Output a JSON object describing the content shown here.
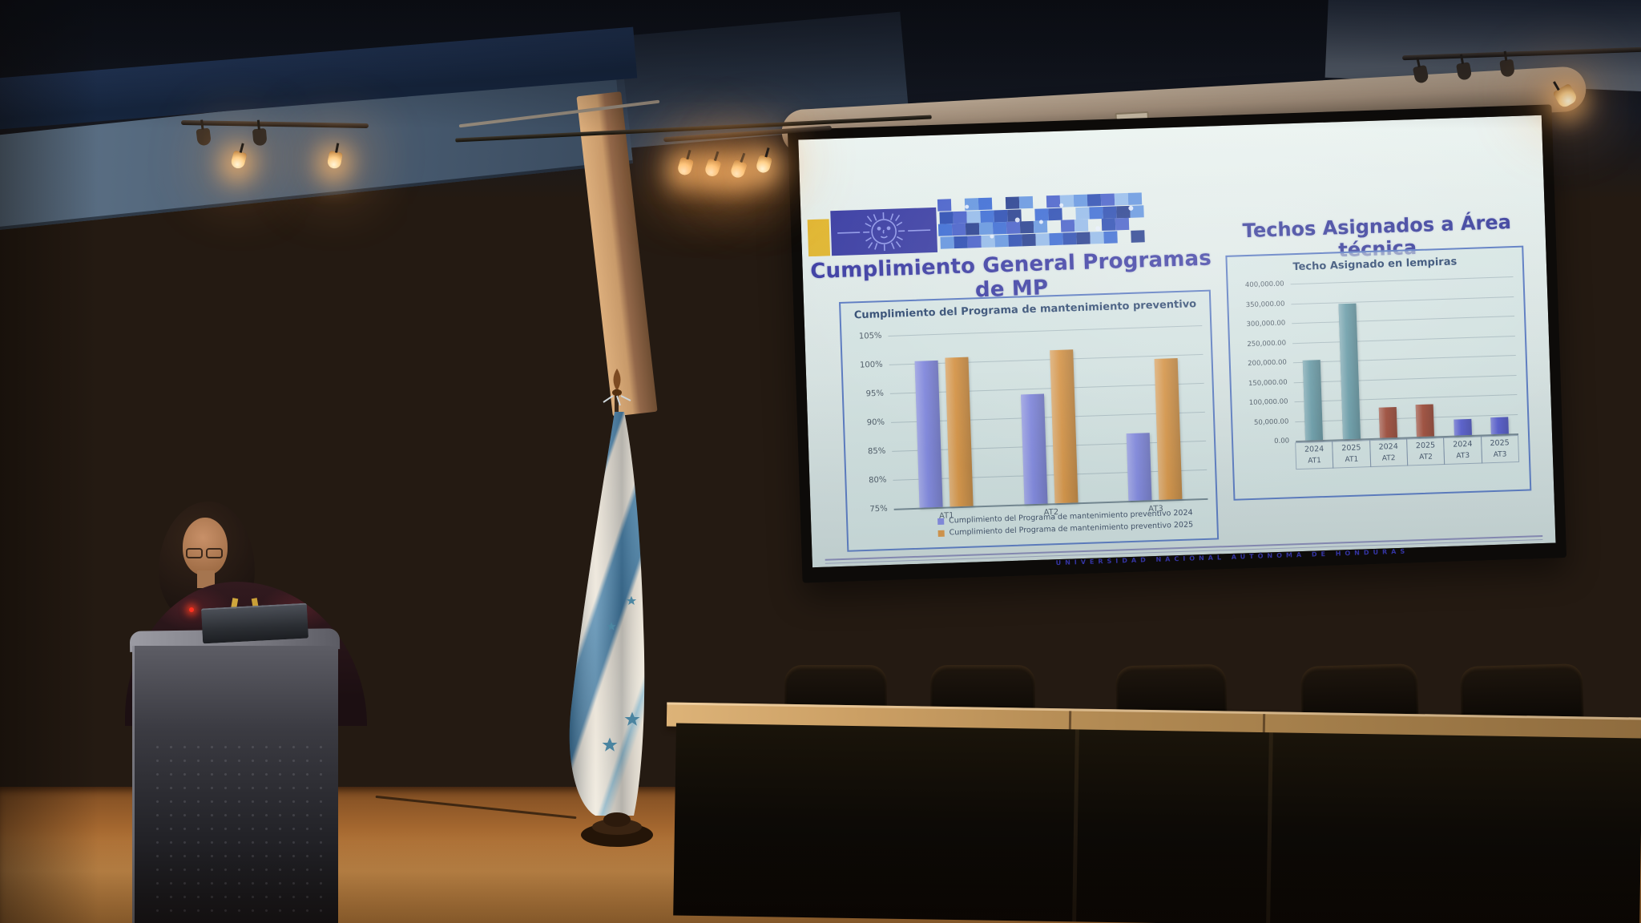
{
  "slide": {
    "title_left": "Cumplimiento General Programas de MP",
    "title_right": "Techos Asignados a Área técnica",
    "footer": "UNIVERSIDAD NACIONAL AUTÓNOMA DE HONDURAS"
  },
  "icons": {
    "logo_sun": "sun-face-icon",
    "logo_mosaic": "unah-mosaic-faces",
    "flag": "honduras-flag"
  },
  "colors": {
    "title_blue": "#2c2c9e",
    "chart_border": "#4d6fc0",
    "logo_yellow": "#e3b31f",
    "logo_navy": "#2d2f9e",
    "bar_blue_2024": "#7b80e3",
    "bar_orange_2025": "#dd8e33",
    "bar_teal_at1": "#5f97a4",
    "bar_red_at2": "#9d3b25",
    "bar_indigo_at3": "#4c50cf"
  },
  "chart_data": [
    {
      "type": "bar",
      "title": "Cumplimiento del Programa de mantenimiento preventivo",
      "categories": [
        "AT1",
        "AT2",
        "AT3"
      ],
      "series": [
        {
          "name": "Cumplimiento del Programa de mantenimiento preventivo  2024",
          "color": "#7b80e3",
          "values": [
            100.4,
            94.0,
            86.6
          ]
        },
        {
          "name": "Cumplimiento del Programa de mantenimiento preventivo  2025",
          "color": "#dd8e33",
          "values": [
            100.8,
            101.5,
            99.4
          ]
        }
      ],
      "ylim": [
        75,
        105
      ],
      "ytick_step": 5,
      "ytick_format": "percent",
      "grid": true,
      "legend_position": "bottom"
    },
    {
      "type": "bar",
      "title": "Techo Asignado en lempiras",
      "categories": [
        [
          "2024",
          "AT1"
        ],
        [
          "2025",
          "AT1"
        ],
        [
          "2024",
          "AT2"
        ],
        [
          "2025",
          "AT2"
        ],
        [
          "2024",
          "AT3"
        ],
        [
          "2025",
          "AT3"
        ]
      ],
      "values": [
        205000,
        345000,
        78000,
        82000,
        40000,
        43000
      ],
      "colors": [
        "#5f97a4",
        "#5f97a4",
        "#9d3b25",
        "#9d3b25",
        "#4c50cf",
        "#4c50cf"
      ],
      "ylim": [
        0,
        400000
      ],
      "ytick_step": 50000,
      "ytick_format": "thousands2dp",
      "grid": true
    }
  ]
}
